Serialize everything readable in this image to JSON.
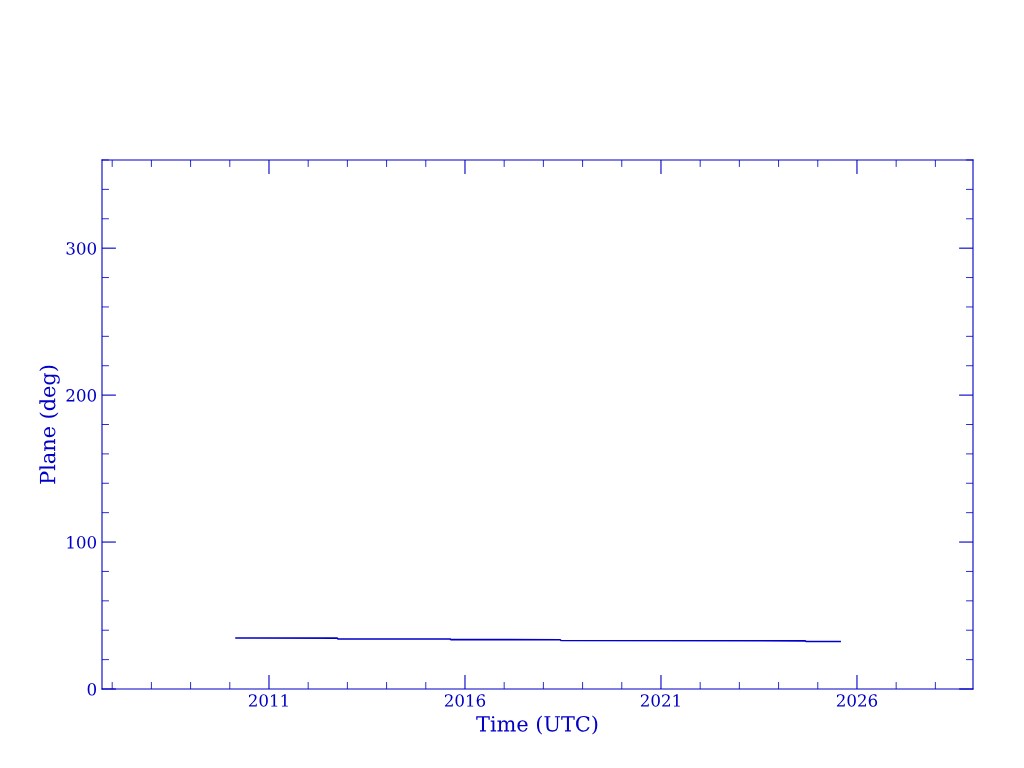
{
  "chart_data": {
    "type": "line",
    "xlabel": "Time (UTC)",
    "ylabel": "Plane (deg)",
    "x": [
      2010.16,
      2012.74,
      2012.76,
      2015.62,
      2015.64,
      2018.43,
      2018.45,
      2024.68,
      2024.7,
      2025.57
    ],
    "series": [
      {
        "color": "#0000c8",
        "values": [
          34.7,
          34.6,
          34.1,
          34.0,
          33.6,
          33.5,
          33.0,
          32.8,
          32.4,
          32.3
        ]
      }
    ],
    "xlim": [
      2006.74,
      2028.96
    ],
    "xticks": [
      2011,
      2016,
      2021,
      2026
    ],
    "ylim": [
      0,
      360
    ],
    "yticks": [
      0,
      100,
      200,
      300
    ],
    "grid": false,
    "marker": "none",
    "line_style": "solid"
  }
}
